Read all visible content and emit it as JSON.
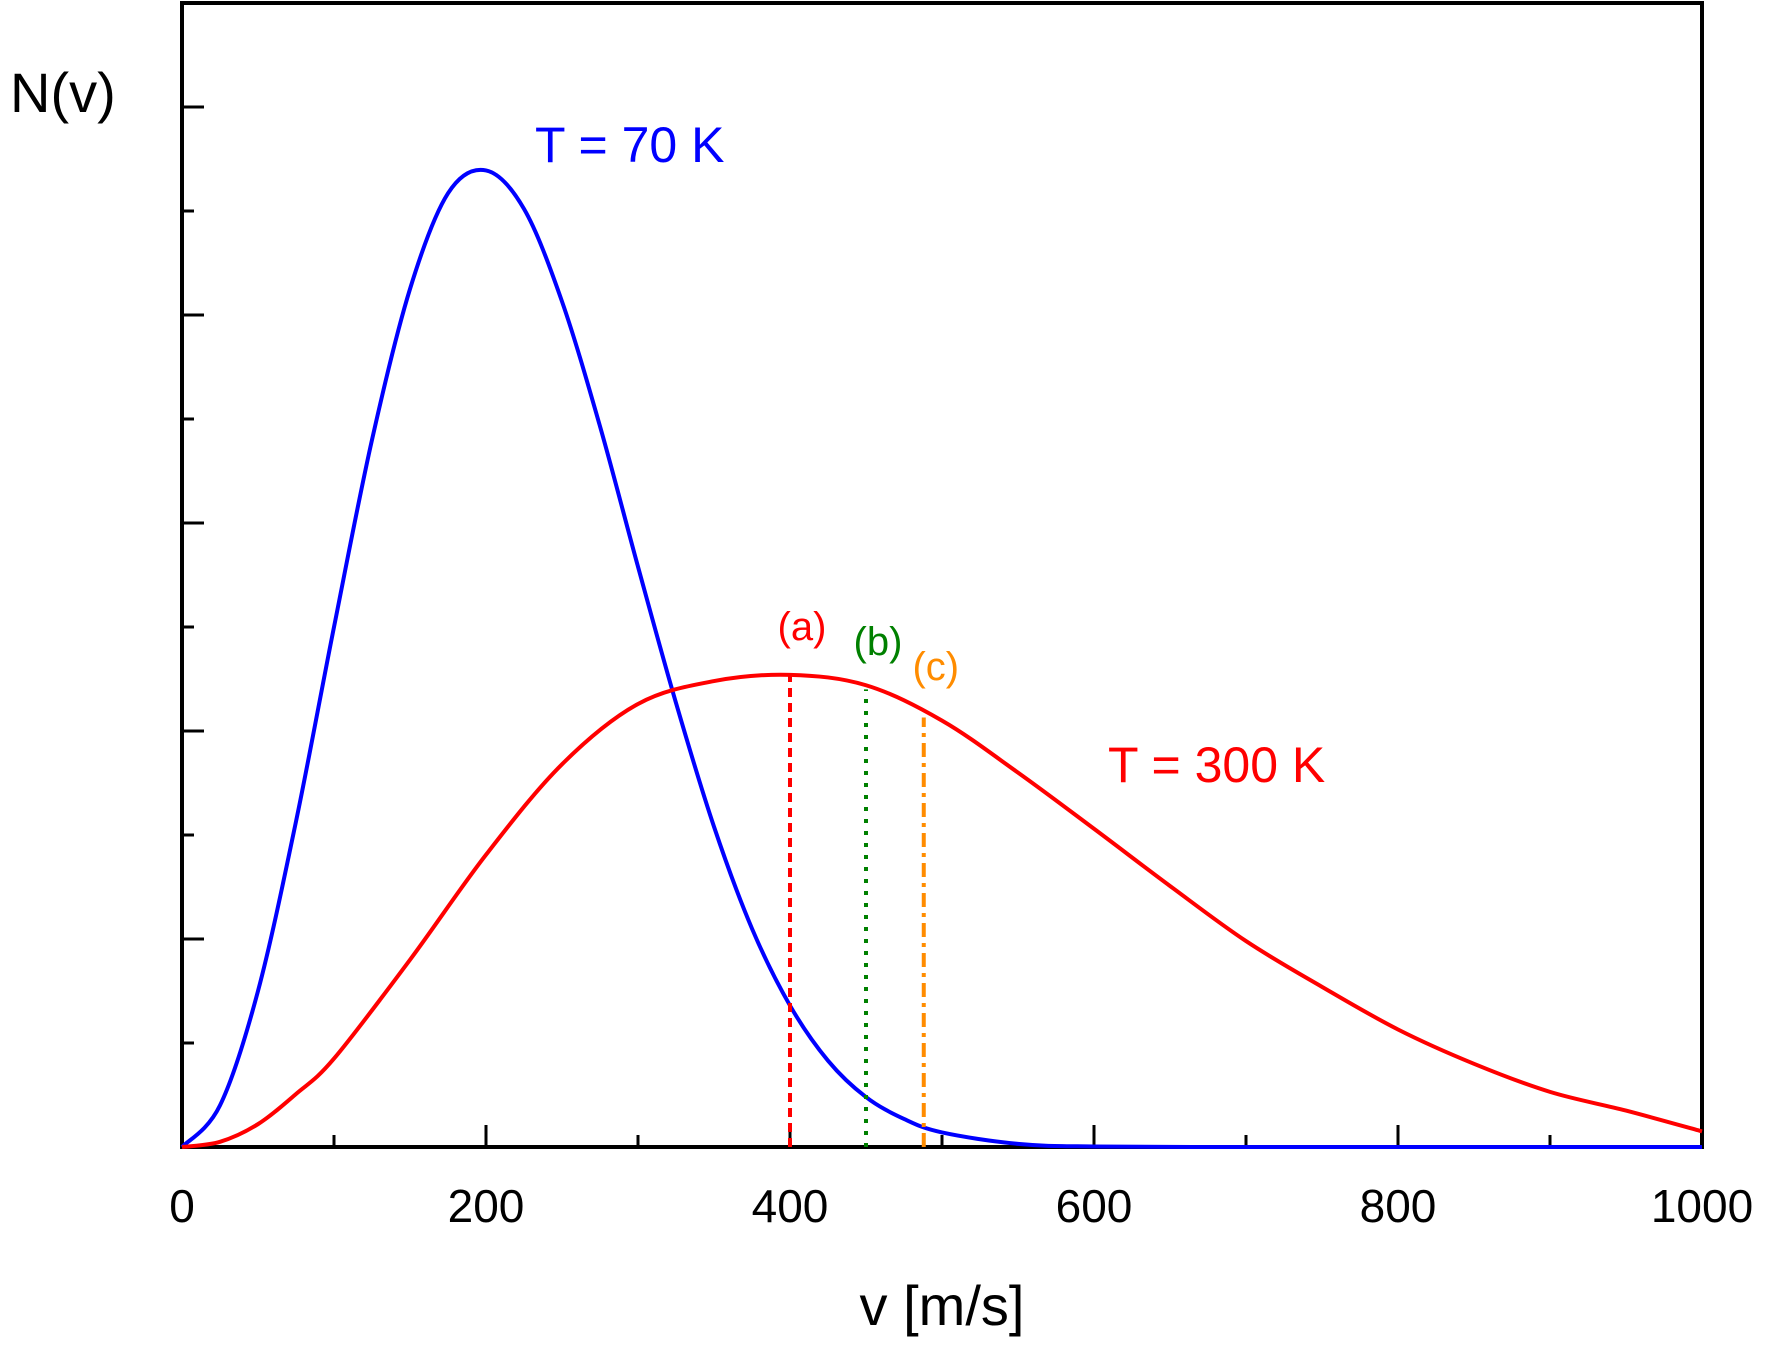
{
  "chart_data": {
    "type": "line",
    "title": "",
    "xlabel": "v [m/s]",
    "ylabel": "N(v)",
    "xlim": [
      0,
      1000
    ],
    "ylim": [
      0,
      1
    ],
    "x_ticks": [
      0,
      200,
      400,
      600,
      800,
      1000
    ],
    "x_tick_labels": [
      "0",
      "200",
      "400",
      "600",
      "800",
      "1000"
    ],
    "y_tick_labels": [],
    "grid": false,
    "legend": "none",
    "series": [
      {
        "name": "T = 70 K",
        "color": "#0000ff",
        "x": [
          0,
          25,
          50,
          75,
          100,
          125,
          150,
          175,
          200,
          225,
          250,
          275,
          300,
          325,
          350,
          375,
          400,
          425,
          450,
          475,
          500,
          550,
          600,
          700,
          800,
          900,
          1000
        ],
        "y": [
          0,
          0.04,
          0.15,
          0.313,
          0.5,
          0.68,
          0.825,
          0.917,
          0.939,
          0.902,
          0.813,
          0.693,
          0.558,
          0.427,
          0.308,
          0.21,
          0.136,
          0.083,
          0.048,
          0.027,
          0.014,
          0.003,
          0.0005,
          0.0,
          0.0,
          0.0,
          0.0
        ]
      },
      {
        "name": "T = 300 K",
        "color": "#ff0000",
        "x": [
          0,
          25,
          50,
          75,
          100,
          150,
          200,
          250,
          300,
          350,
          400,
          450,
          500,
          550,
          600,
          650,
          700,
          750,
          800,
          850,
          900,
          950,
          1000
        ],
        "y": [
          0,
          0.005,
          0.022,
          0.051,
          0.085,
          0.18,
          0.281,
          0.368,
          0.426,
          0.448,
          0.454,
          0.444,
          0.41,
          0.36,
          0.306,
          0.251,
          0.198,
          0.154,
          0.113,
          0.08,
          0.053,
          0.035,
          0.015
        ]
      }
    ],
    "markers": [
      {
        "label": "(a)",
        "x": 400,
        "y": 0.454,
        "color": "#ff0000",
        "style": "dashed"
      },
      {
        "label": "(b)",
        "x": 450,
        "y": 0.44,
        "color": "#008000",
        "style": "dotted"
      },
      {
        "label": "(c)",
        "x": 488,
        "y": 0.413,
        "color": "#ff8c00",
        "style": "dashdot"
      }
    ]
  }
}
